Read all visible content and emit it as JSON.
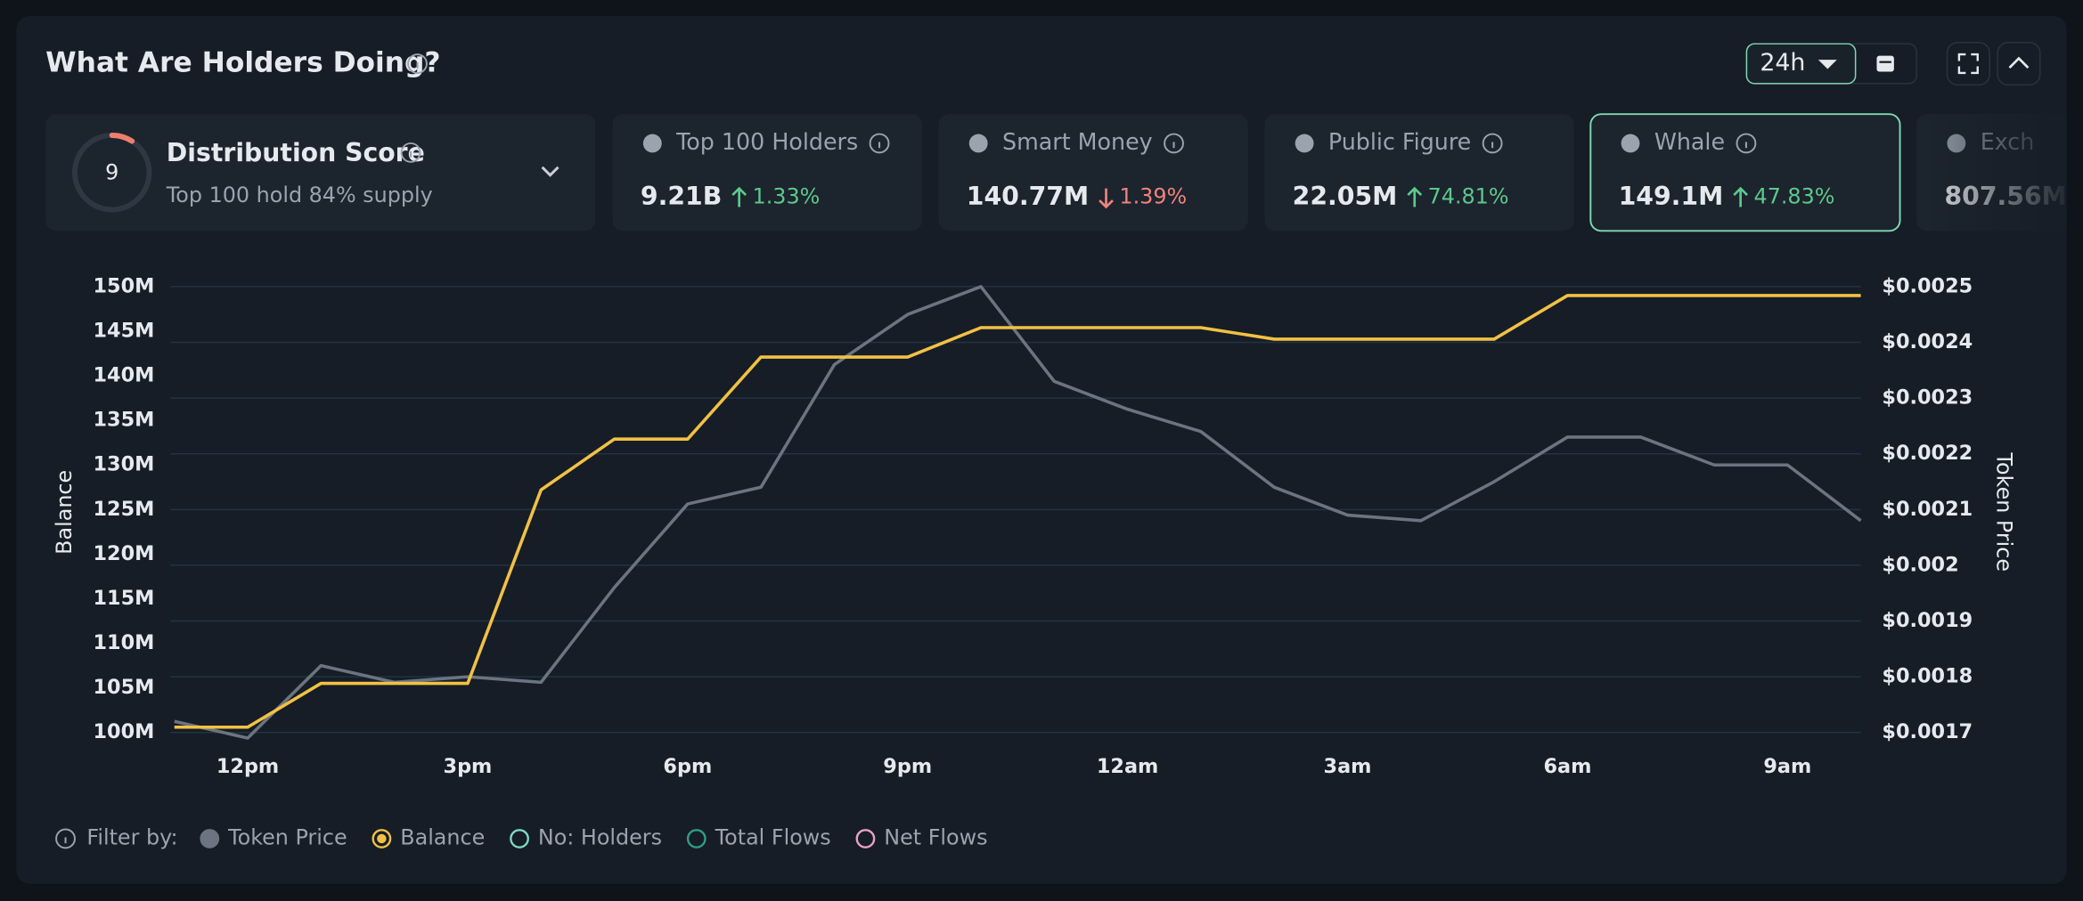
{
  "header": {
    "title": "What Are Holders Doing?",
    "timeframe": "24h"
  },
  "score": {
    "value": 9,
    "title": "Distribution Score",
    "subtitle": "Top 100 hold 84% supply"
  },
  "cards": [
    {
      "label": "Top 100 Holders",
      "value": "9.21B",
      "change": "1.33%",
      "direction": "up"
    },
    {
      "label": "Smart Money",
      "value": "140.77M",
      "change": "1.39%",
      "direction": "down"
    },
    {
      "label": "Public Figure",
      "value": "22.05M",
      "change": "74.81%",
      "direction": "up"
    },
    {
      "label": "Whale",
      "value": "149.1M",
      "change": "47.83%",
      "direction": "up",
      "selected": true
    },
    {
      "label": "Exch",
      "value": "807.56M"
    }
  ],
  "filter_label": "Filter by:",
  "filters": [
    {
      "name": "No: Holders",
      "color": "#7fd8c4"
    },
    {
      "name": "Total Flows",
      "color": "#2f9e86"
    },
    {
      "name": "Net Flows",
      "color": "#e9a3c4"
    }
  ],
  "chart_data": {
    "type": "line",
    "y_label": "Balance",
    "y2_label": "Token Price",
    "categories": [
      null,
      "12pm",
      null,
      null,
      "3pm",
      null,
      null,
      "6pm",
      null,
      null,
      "9pm",
      null,
      null,
      "12am",
      null,
      null,
      "3am",
      null,
      null,
      "6am",
      null,
      null,
      "9am",
      null
    ],
    "series": [
      {
        "name": "Token Price",
        "color": "#6b7480",
        "axis": "y2",
        "values": [
          0.00172,
          0.00169,
          0.00182,
          0.00179,
          0.0018,
          0.00179,
          0.00196,
          0.00211,
          0.00214,
          0.00236,
          0.00245,
          0.0025,
          0.00233,
          0.00228,
          0.00224,
          0.00214,
          0.00209,
          0.00208,
          0.00215,
          0.00223,
          0.00223,
          0.00218,
          0.00218,
          0.00208
        ]
      },
      {
        "name": "Balance",
        "color": "#f2c144",
        "values": [
          100600000,
          100600000,
          105500000,
          105500000,
          105500000,
          127200000,
          132900000,
          132900000,
          142100000,
          142100000,
          142100000,
          145400000,
          145400000,
          145400000,
          145400000,
          144100000,
          144100000,
          144100000,
          144100000,
          149000000,
          149000000,
          149000000,
          149000000,
          149000000
        ]
      }
    ],
    "ylim": [
      100000000,
      150000000
    ],
    "yticks": [
      {
        "value": 100000000,
        "label": "100M"
      },
      {
        "value": 105000000,
        "label": "105M"
      },
      {
        "value": 110000000,
        "label": "110M"
      },
      {
        "value": 115000000,
        "label": "115M"
      },
      {
        "value": 120000000,
        "label": "120M"
      },
      {
        "value": 125000000,
        "label": "125M"
      },
      {
        "value": 130000000,
        "label": "130M"
      },
      {
        "value": 135000000,
        "label": "135M"
      },
      {
        "value": 140000000,
        "label": "140M"
      },
      {
        "value": 145000000,
        "label": "145M"
      },
      {
        "value": 150000000,
        "label": "150M"
      }
    ],
    "y2lim": [
      0.0017,
      0.0025
    ],
    "y2ticks": [
      {
        "value": 0.0017,
        "label": "$0.0017"
      },
      {
        "value": 0.0018,
        "label": "$0.0018"
      },
      {
        "value": 0.0019,
        "label": "$0.0019"
      },
      {
        "value": 0.002,
        "label": "$0.002"
      },
      {
        "value": 0.0021,
        "label": "$0.0021"
      },
      {
        "value": 0.0022,
        "label": "$0.0022"
      },
      {
        "value": 0.0023,
        "label": "$0.0023"
      },
      {
        "value": 0.0024,
        "label": "$0.0024"
      },
      {
        "value": 0.0025,
        "label": "$0.0025"
      }
    ],
    "grid": "y2"
  }
}
